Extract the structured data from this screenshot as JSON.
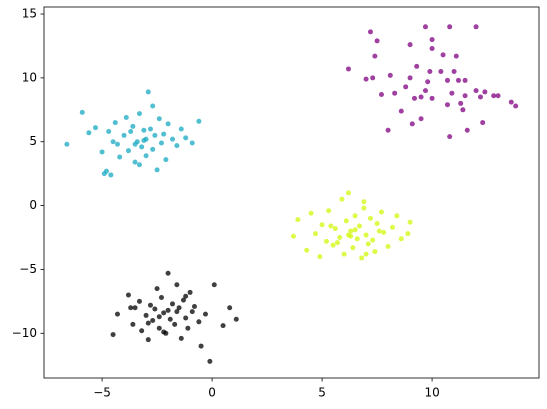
{
  "chart_data": {
    "type": "scatter",
    "xlim": [
      -7.64,
      14.86
    ],
    "ylim": [
      -13.5,
      15.55
    ],
    "xticks": [
      {
        "value": -5,
        "label": "−5"
      },
      0,
      5,
      10
    ],
    "yticks": [
      {
        "value": -10,
        "label": "−10"
      },
      {
        "value": -5,
        "label": "−5"
      },
      0,
      5,
      10,
      15
    ],
    "series": [
      {
        "color": "#17a9c1",
        "x": [
          -6.6,
          -5.9,
          -5.6,
          -5.3,
          -5.0,
          -4.9,
          -4.8,
          -4.6,
          -4.5,
          -4.4,
          -4.3,
          -4.2,
          -4.0,
          -3.9,
          -3.8,
          -3.7,
          -3.6,
          -3.5,
          -3.4,
          -3.3,
          -3.2,
          -3.1,
          -3.0,
          -3.0,
          -2.9,
          -2.8,
          -2.7,
          -2.6,
          -2.5,
          -2.4,
          -2.3,
          -2.2,
          -2.1,
          -2.0,
          -1.8,
          -1.6,
          -1.4,
          -1.2,
          -0.9,
          -0.6,
          -3.1,
          -3.5,
          -2.7,
          -4.7,
          -3.3
        ],
        "values": [
          4.8,
          7.3,
          5.7,
          6.1,
          4.2,
          2.5,
          2.7,
          2.4,
          5.0,
          6.5,
          4.8,
          3.8,
          5.5,
          6.9,
          4.3,
          5.8,
          6.2,
          3.4,
          5.0,
          7.2,
          4.6,
          5.9,
          5.2,
          3.9,
          8.9,
          6.0,
          4.4,
          5.5,
          2.8,
          6.8,
          4.9,
          5.6,
          3.6,
          6.4,
          5.2,
          4.7,
          6.0,
          5.3,
          4.9,
          6.6,
          5.1,
          4.8,
          7.8,
          5.8,
          3.2
        ]
      },
      {
        "color": "#800080",
        "x": [
          7.2,
          7.5,
          7.4,
          6.2,
          7.3,
          7.7,
          7.0,
          8.1,
          8.6,
          8.0,
          9.0,
          9.7,
          10.0,
          10.0,
          10.8,
          11.1,
          12.0,
          10.5,
          10.4,
          9.3,
          9.8,
          9.9,
          11.0,
          11.2,
          11.5,
          11.5,
          10.7,
          11.4,
          11.3,
          10.7,
          10.9,
          12.0,
          12.2,
          12.4,
          12.8,
          13.0,
          13.6,
          13.8,
          12.3,
          11.6,
          10.8,
          9.5,
          9.2,
          9.0,
          9.5,
          9.1,
          10.0,
          8.3,
          8.8,
          9.7
        ],
        "values": [
          13.6,
          12.9,
          11.7,
          10.7,
          10.0,
          8.7,
          9.9,
          10.2,
          7.4,
          5.9,
          12.6,
          14.0,
          12.3,
          13.0,
          14.0,
          11.7,
          14.0,
          11.8,
          10.5,
          10.9,
          9.7,
          10.5,
          10.5,
          9.8,
          9.8,
          8.6,
          7.9,
          7.5,
          8.0,
          9.8,
          8.8,
          9.0,
          8.5,
          8.9,
          8.6,
          8.6,
          8.1,
          7.8,
          6.5,
          5.9,
          5.4,
          8.5,
          8.4,
          10.0,
          6.8,
          6.4,
          8.4,
          8.8,
          9.3,
          9.0
        ]
      },
      {
        "color": "#d4f70c",
        "x": [
          3.7,
          3.9,
          4.3,
          4.5,
          4.7,
          4.9,
          5.0,
          5.2,
          5.3,
          5.5,
          5.6,
          5.8,
          5.9,
          6.0,
          6.1,
          6.2,
          6.3,
          6.4,
          6.5,
          6.6,
          6.7,
          6.8,
          6.9,
          7.0,
          7.1,
          7.2,
          7.3,
          7.4,
          7.5,
          7.7,
          7.8,
          8.0,
          8.2,
          8.4,
          8.6,
          8.9,
          9.0,
          6.3,
          6.5,
          5.7,
          7.6,
          6.9,
          5.4,
          7.0,
          6.2
        ],
        "values": [
          -2.4,
          -1.1,
          -3.5,
          -0.6,
          -2.2,
          -4.0,
          -1.5,
          -2.8,
          -0.4,
          -3.1,
          -1.8,
          -2.5,
          0.5,
          -3.8,
          -1.2,
          1.0,
          -2.0,
          -3.3,
          -0.8,
          -2.6,
          -1.6,
          -4.1,
          -0.2,
          -2.3,
          -3.0,
          -1.0,
          -2.7,
          -3.6,
          -1.4,
          -0.5,
          -2.1,
          -3.2,
          -1.7,
          -0.8,
          -2.6,
          -2.2,
          -1.3,
          -2.4,
          -1.9,
          -2.9,
          -2.0,
          0.3,
          -1.6,
          -3.8,
          -2.3
        ]
      },
      {
        "color": "#000000",
        "x": [
          -4.5,
          -4.3,
          -3.8,
          -3.6,
          -3.5,
          -3.3,
          -3.2,
          -3.0,
          -2.9,
          -2.8,
          -2.7,
          -2.6,
          -2.5,
          -2.4,
          -2.3,
          -2.2,
          -2.1,
          -2.0,
          -1.9,
          -1.8,
          -1.7,
          -1.6,
          -1.5,
          -1.4,
          -1.3,
          -1.2,
          -1.1,
          -1.0,
          -0.9,
          -0.8,
          -0.6,
          -0.5,
          -0.3,
          0.1,
          0.5,
          0.8,
          1.1,
          -2.0,
          -0.1,
          -2.4,
          -1.6,
          -2.9,
          -1.2,
          -3.7,
          -2.2
        ],
        "values": [
          -10.1,
          -8.5,
          -7.0,
          -9.3,
          -8.0,
          -7.5,
          -9.8,
          -8.6,
          -10.5,
          -7.8,
          -9.0,
          -8.1,
          -6.5,
          -9.6,
          -7.2,
          -8.4,
          -10.0,
          -5.3,
          -8.9,
          -7.7,
          -9.3,
          -6.2,
          -8.0,
          -10.4,
          -7.4,
          -8.8,
          -9.6,
          -6.8,
          -8.3,
          -7.9,
          -9.1,
          -11.0,
          -8.5,
          -6.2,
          -9.4,
          -8.0,
          -8.9,
          -8.2,
          -12.2,
          -8.7,
          -8.3,
          -9.2,
          -7.1,
          -8.0,
          -9.9
        ]
      }
    ]
  }
}
